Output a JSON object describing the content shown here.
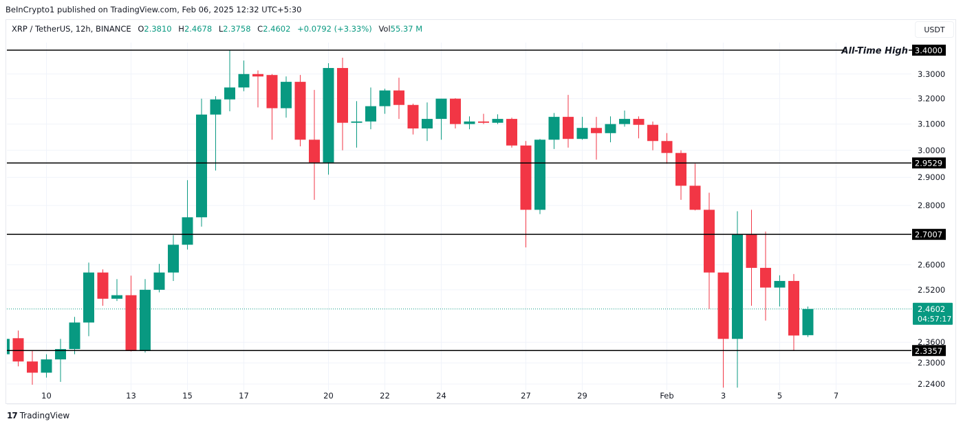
{
  "published": "BeInCrypto1 published on TradingView.com, Feb 06, 2025 12:32 UTC+5:30",
  "legend": {
    "symbol": "XRP / TetherUS, 12h, BINANCE",
    "open_label": "O",
    "open": "2.3810",
    "high_label": "H",
    "high": "2.4678",
    "low_label": "L",
    "low": "2.3758",
    "close_label": "C",
    "close": "2.4602",
    "change": "+0.0792 (+3.33%)",
    "vol_label": "Vol",
    "vol": "55.37 M"
  },
  "currency": "USDT",
  "footer": {
    "logo_text": "TradingView",
    "logo_mark": "17"
  },
  "colors": {
    "up": "#089981",
    "down": "#f23645",
    "level": "#000000",
    "grid": "#f0f3fa"
  },
  "chart_data": {
    "type": "candlestick",
    "y_scale": "log",
    "ylim": [
      2.225,
      3.43
    ],
    "y_ticks": [
      "3.3000",
      "3.2000",
      "3.1000",
      "3.0000",
      "2.9000",
      "2.8000",
      "2.6000",
      "2.5200",
      "2.3600",
      "2.3000",
      "2.2400"
    ],
    "x_ticks": [
      "10",
      "13",
      "15",
      "17",
      "20",
      "22",
      "24",
      "27",
      "29",
      "Feb",
      "3",
      "5",
      "7"
    ],
    "candles_ohlc": [
      [
        2.325,
        2.38,
        2.32,
        2.37
      ],
      [
        2.372,
        2.395,
        2.29,
        2.304
      ],
      [
        2.304,
        2.336,
        2.238,
        2.272
      ],
      [
        2.272,
        2.325,
        2.258,
        2.31
      ],
      [
        2.31,
        2.37,
        2.246,
        2.34
      ],
      [
        2.34,
        2.436,
        2.325,
        2.419
      ],
      [
        2.419,
        2.607,
        2.378,
        2.575
      ],
      [
        2.575,
        2.585,
        2.47,
        2.492
      ],
      [
        2.492,
        2.554,
        2.485,
        2.503
      ],
      [
        2.503,
        2.565,
        2.333,
        2.335
      ],
      [
        2.335,
        2.554,
        2.33,
        2.52
      ],
      [
        2.52,
        2.603,
        2.512,
        2.575
      ],
      [
        2.575,
        2.698,
        2.548,
        2.666
      ],
      [
        2.666,
        2.89,
        2.65,
        2.759
      ],
      [
        2.759,
        3.2,
        2.727,
        3.137
      ],
      [
        3.137,
        3.21,
        2.925,
        3.197
      ],
      [
        3.197,
        3.4,
        3.15,
        3.245
      ],
      [
        3.245,
        3.356,
        3.23,
        3.3
      ],
      [
        3.3,
        3.315,
        3.165,
        3.29
      ],
      [
        3.296,
        3.3,
        3.04,
        3.162
      ],
      [
        3.162,
        3.29,
        3.125,
        3.268
      ],
      [
        3.268,
        3.296,
        3.015,
        3.04
      ],
      [
        3.04,
        3.235,
        2.82,
        2.955
      ],
      [
        2.955,
        3.345,
        2.91,
        3.325
      ],
      [
        3.325,
        3.368,
        3.0,
        3.105
      ],
      [
        3.105,
        3.19,
        3.01,
        3.11
      ],
      [
        3.11,
        3.245,
        3.08,
        3.17
      ],
      [
        3.17,
        3.24,
        3.14,
        3.233
      ],
      [
        3.233,
        3.285,
        3.12,
        3.175
      ],
      [
        3.175,
        3.18,
        3.06,
        3.083
      ],
      [
        3.083,
        3.185,
        3.035,
        3.12
      ],
      [
        3.12,
        3.2,
        3.04,
        3.2
      ],
      [
        3.2,
        3.202,
        3.083,
        3.1
      ],
      [
        3.1,
        3.13,
        3.08,
        3.11
      ],
      [
        3.11,
        3.14,
        3.1,
        3.105
      ],
      [
        3.105,
        3.138,
        3.1,
        3.12
      ],
      [
        3.12,
        3.125,
        3.01,
        3.018
      ],
      [
        3.018,
        3.035,
        2.657,
        2.785
      ],
      [
        2.785,
        3.043,
        2.77,
        3.04
      ],
      [
        3.04,
        3.143,
        3.005,
        3.128
      ],
      [
        3.128,
        3.215,
        3.01,
        3.043
      ],
      [
        3.043,
        3.128,
        3.04,
        3.085
      ],
      [
        3.085,
        3.128,
        2.965,
        3.065
      ],
      [
        3.065,
        3.13,
        3.03,
        3.1
      ],
      [
        3.1,
        3.153,
        3.09,
        3.12
      ],
      [
        3.12,
        3.13,
        3.045,
        3.097
      ],
      [
        3.097,
        3.11,
        3.0,
        3.035
      ],
      [
        3.035,
        3.065,
        2.95,
        2.99
      ],
      [
        2.99,
        3.0,
        2.82,
        2.87
      ],
      [
        2.87,
        2.95,
        2.783,
        2.785
      ],
      [
        2.785,
        2.845,
        2.46,
        2.575
      ],
      [
        2.575,
        2.575,
        2.23,
        2.37
      ],
      [
        2.37,
        2.78,
        2.23,
        2.7
      ],
      [
        2.7,
        2.785,
        2.47,
        2.59
      ],
      [
        2.59,
        2.71,
        2.425,
        2.527
      ],
      [
        2.527,
        2.566,
        2.468,
        2.548
      ],
      [
        2.548,
        2.57,
        2.335,
        2.38
      ],
      [
        2.381,
        2.4678,
        2.3758,
        2.4602
      ]
    ],
    "levels": [
      {
        "value": 3.4,
        "label": "3.4000",
        "annotation": "All-Time High"
      },
      {
        "value": 2.9529,
        "label": "2.9529"
      },
      {
        "value": 2.7007,
        "label": "2.7007"
      },
      {
        "value": 2.3357,
        "label": "2.3357"
      }
    ],
    "last_price": {
      "value": 2.4602,
      "label": "2.4602",
      "countdown": "04:57:17"
    }
  }
}
